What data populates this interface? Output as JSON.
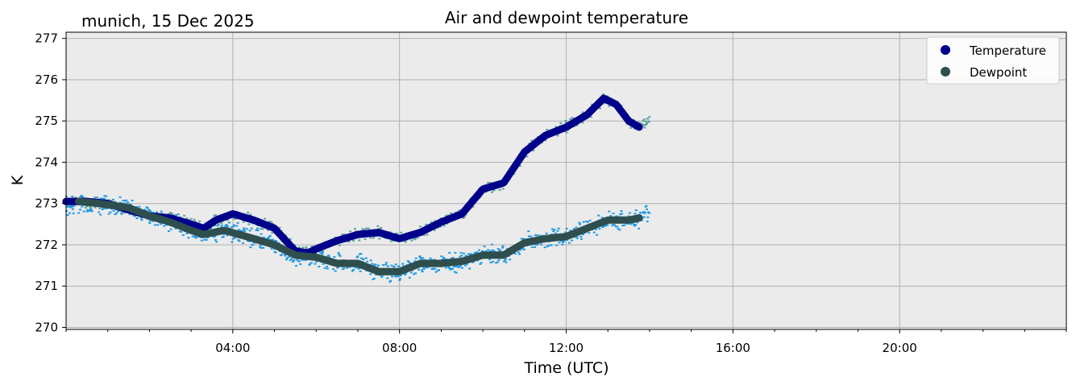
{
  "chart_data": {
    "type": "line",
    "title": "Air and dewpoint temperature",
    "subtitle": "munich, 15 Dec 2025",
    "xlabel": "Time (UTC)",
    "ylabel": "K",
    "xlim": [
      0,
      24
    ],
    "ylim": [
      269.95,
      277.15
    ],
    "x_tick_values": [
      4,
      8,
      12,
      16,
      20
    ],
    "x_tick_labels": [
      "04:00",
      "08:00",
      "12:00",
      "16:00",
      "20:00"
    ],
    "y_tick_values": [
      270,
      271,
      272,
      273,
      274,
      275,
      276,
      277
    ],
    "y_tick_labels": [
      "270",
      "271",
      "272",
      "273",
      "274",
      "275",
      "276",
      "277"
    ],
    "grid": true,
    "legend_position": "top-right",
    "legend": [
      "Temperature",
      "Dewpoint"
    ],
    "colors": {
      "plot_background": "#ebebeb",
      "grid": "#b0b0b0",
      "temperature_smooth": "#00008b",
      "temperature_raw": "#5f9ea0",
      "dewpoint_smooth": "#2f4f4f",
      "dewpoint_raw": "#1e9ae8"
    },
    "series": [
      {
        "name": "Temperature",
        "color": "#00008b",
        "x": [
          0.0,
          0.5,
          1.0,
          1.5,
          2.0,
          2.5,
          3.0,
          3.3,
          3.6,
          4.0,
          4.5,
          5.0,
          5.5,
          5.8,
          6.0,
          6.5,
          7.0,
          7.5,
          8.0,
          8.5,
          9.0,
          9.5,
          10.0,
          10.5,
          11.0,
          11.5,
          12.0,
          12.5,
          12.9,
          13.2,
          13.5,
          13.75
        ],
        "values": [
          273.05,
          273.05,
          273.0,
          272.85,
          272.7,
          272.65,
          272.5,
          272.4,
          272.6,
          272.75,
          272.6,
          272.4,
          271.85,
          271.8,
          271.9,
          272.1,
          272.25,
          272.3,
          272.15,
          272.3,
          272.55,
          272.75,
          273.35,
          273.5,
          274.25,
          274.65,
          274.85,
          275.15,
          275.55,
          275.4,
          275.0,
          274.85
        ]
      },
      {
        "name": "Dewpoint",
        "color": "#2f4f4f",
        "x": [
          0.3,
          0.8,
          1.5,
          2.0,
          2.5,
          3.0,
          3.3,
          3.8,
          4.5,
          5.0,
          5.5,
          6.0,
          6.5,
          7.0,
          7.5,
          8.0,
          8.5,
          9.0,
          9.5,
          10.0,
          10.5,
          11.0,
          11.5,
          12.0,
          12.5,
          13.0,
          13.5,
          13.75
        ],
        "values": [
          273.05,
          273.0,
          272.9,
          272.7,
          272.55,
          272.35,
          272.25,
          272.35,
          272.15,
          272.0,
          271.75,
          271.7,
          271.55,
          271.55,
          271.35,
          271.35,
          271.55,
          271.55,
          271.6,
          271.75,
          271.75,
          272.05,
          272.15,
          272.2,
          272.4,
          272.6,
          272.6,
          272.65
        ]
      }
    ],
    "raw_series": [
      {
        "name": "Temperature (raw)",
        "color": "#5f9ea0",
        "x": [
          0.0,
          0.5,
          1.0,
          1.5,
          2.0,
          2.5,
          3.0,
          3.3,
          3.6,
          4.0,
          4.5,
          5.0,
          5.5,
          5.8,
          6.0,
          6.5,
          7.0,
          7.5,
          8.0,
          8.5,
          9.0,
          9.5,
          10.0,
          10.5,
          11.0,
          11.5,
          12.0,
          12.5,
          12.9,
          13.2,
          13.5,
          13.75,
          14.0
        ],
        "values": [
          273.05,
          273.05,
          273.0,
          272.85,
          272.7,
          272.65,
          272.5,
          272.4,
          272.6,
          272.75,
          272.6,
          272.4,
          271.85,
          271.8,
          271.9,
          272.1,
          272.25,
          272.3,
          272.15,
          272.3,
          272.55,
          272.75,
          273.35,
          273.5,
          274.25,
          274.65,
          274.85,
          275.15,
          275.55,
          275.4,
          275.0,
          274.85,
          275.05
        ]
      },
      {
        "name": "Dewpoint (raw)",
        "color": "#1e9ae8",
        "x": [
          0.0,
          0.3,
          0.8,
          1.5,
          2.0,
          2.5,
          3.0,
          3.3,
          3.8,
          4.5,
          5.0,
          5.5,
          6.0,
          6.5,
          7.0,
          7.5,
          8.0,
          8.5,
          9.0,
          9.5,
          10.0,
          10.5,
          11.0,
          11.5,
          12.0,
          12.5,
          13.0,
          13.5,
          13.75,
          14.0
        ],
        "values": [
          272.9,
          273.05,
          273.0,
          272.9,
          272.7,
          272.55,
          272.35,
          272.25,
          272.35,
          272.15,
          272.0,
          271.75,
          271.7,
          271.55,
          271.55,
          271.35,
          271.35,
          271.55,
          271.55,
          271.6,
          271.75,
          271.75,
          272.05,
          272.15,
          272.2,
          272.4,
          272.6,
          272.6,
          272.65,
          272.8
        ]
      }
    ]
  }
}
